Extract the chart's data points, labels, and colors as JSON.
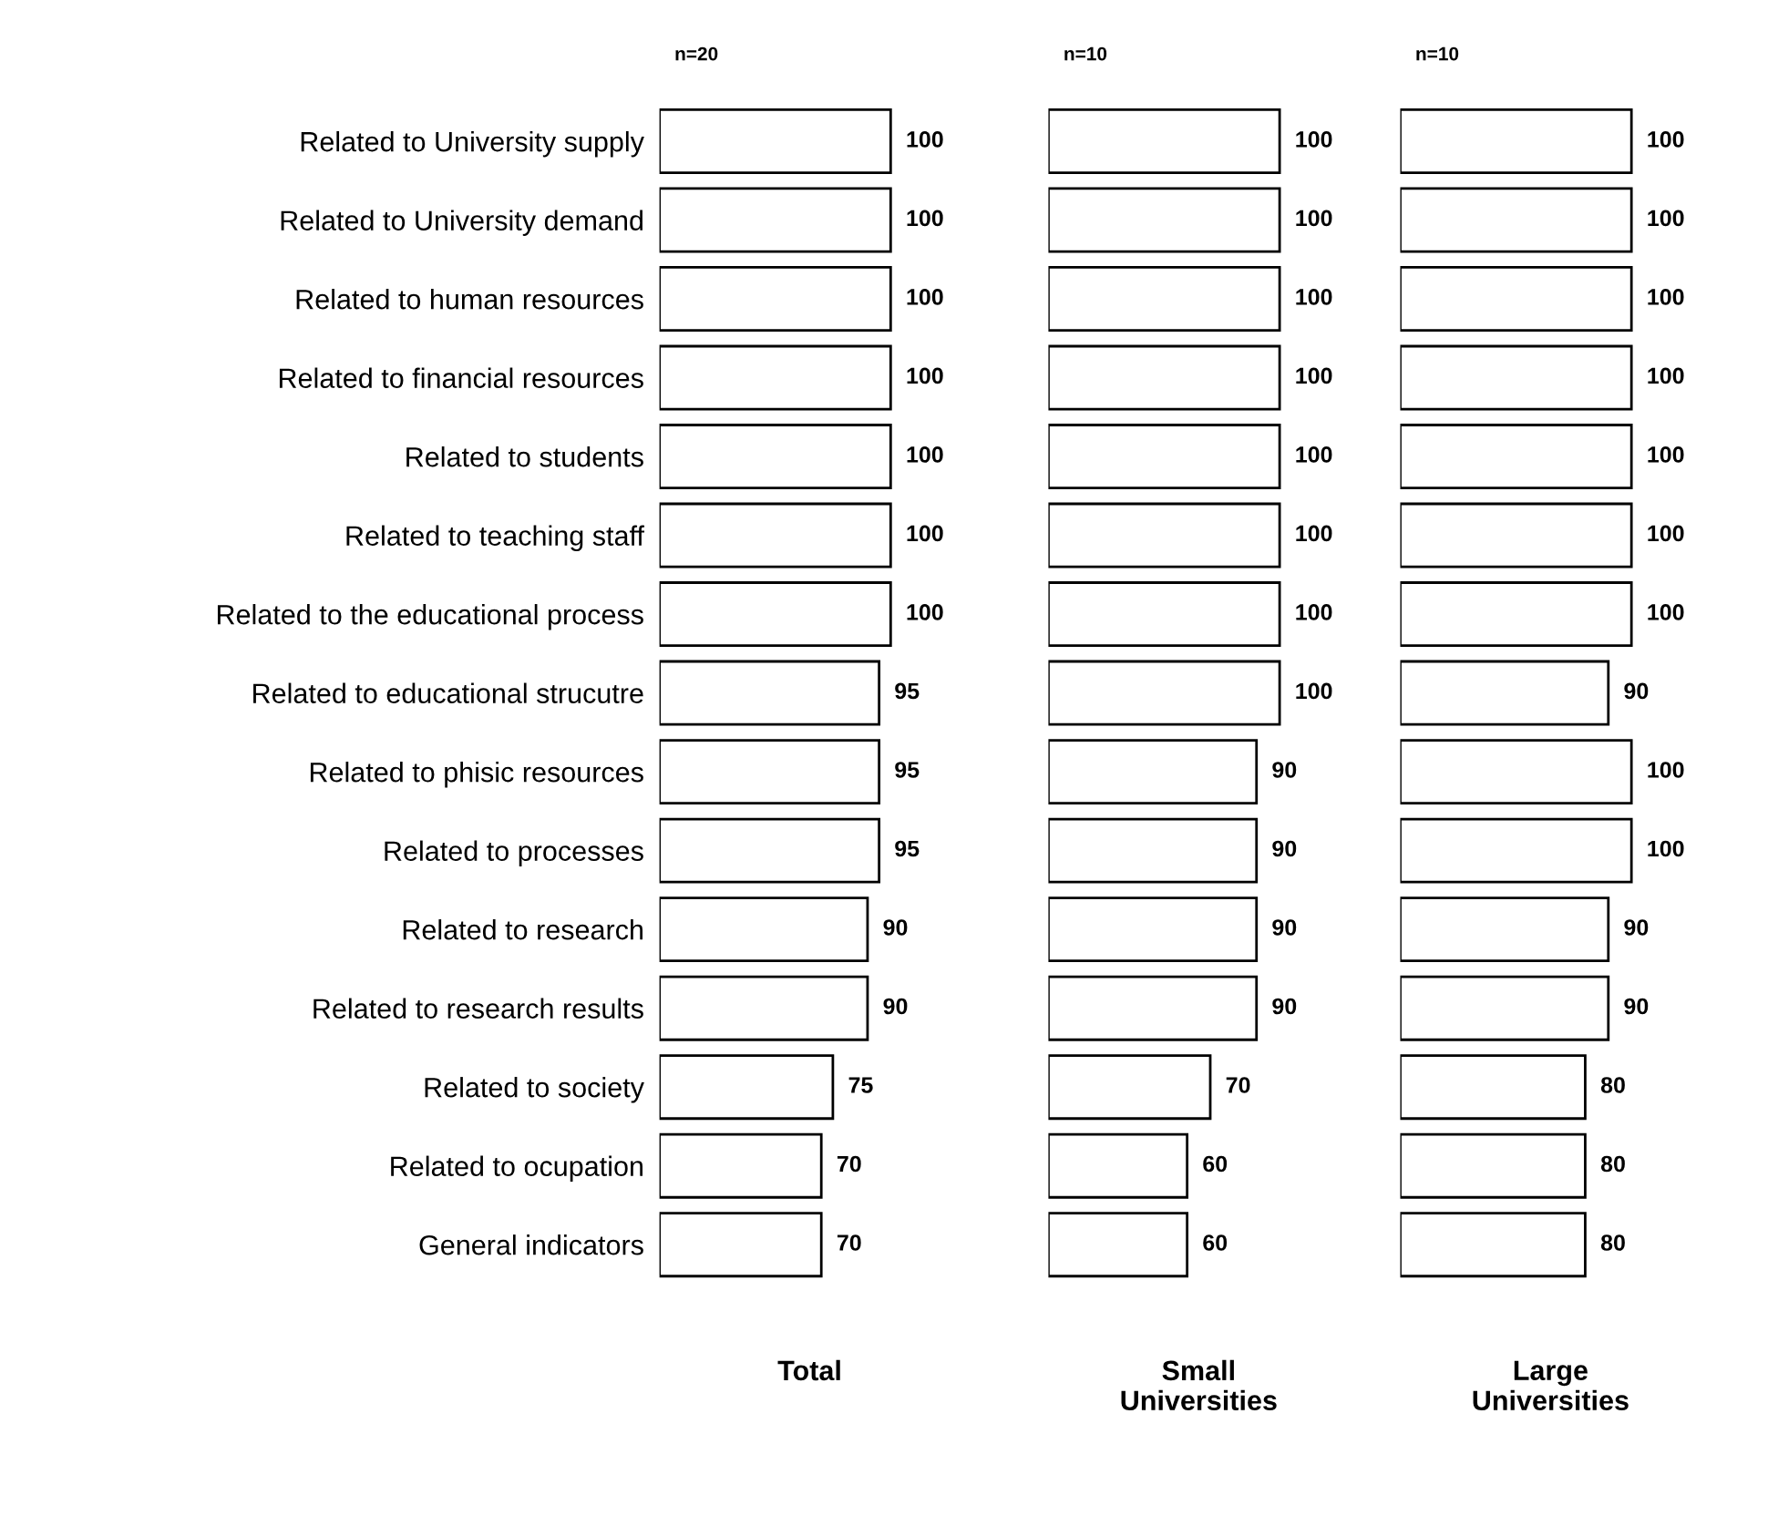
{
  "chart_data": [
    {
      "type": "bar",
      "orientation": "horizontal",
      "subtitle": "n=20",
      "xlabel": "Total",
      "data_labels": true,
      "color": "#ffffff",
      "categories": [
        "Related to University supply",
        "Related to University demand",
        "Related to human resources",
        "Related to financial resources",
        "Related to students",
        "Related to teaching staff",
        "Related to the educational process",
        "Related to educational strucutre",
        "Related to phisic resources",
        "Related to processes",
        "Related to research",
        "Related to research results",
        "Related to society",
        "Related to ocupation",
        "General indicators"
      ],
      "values": [
        100,
        100,
        100,
        100,
        100,
        100,
        100,
        95,
        95,
        95,
        90,
        90,
        75,
        70,
        70
      ]
    },
    {
      "type": "bar",
      "orientation": "horizontal",
      "subtitle": "n=10",
      "xlabel": "Small\nUniversities",
      "data_labels": true,
      "color": "#ffffff",
      "categories": [
        null,
        null,
        null,
        null,
        null,
        null,
        null,
        null,
        null,
        null,
        null,
        null,
        null,
        null,
        null
      ],
      "values": [
        100,
        100,
        100,
        100,
        100,
        100,
        100,
        100,
        90,
        90,
        90,
        90,
        70,
        60,
        60
      ]
    },
    {
      "type": "bar",
      "orientation": "horizontal",
      "subtitle": "n=10",
      "xlabel": "Large\nUniversities",
      "data_labels": true,
      "color": "#ffffff",
      "categories": [
        null,
        null,
        null,
        null,
        null,
        null,
        null,
        null,
        null,
        null,
        null,
        null,
        null,
        null,
        null
      ],
      "values": [
        100,
        100,
        100,
        100,
        100,
        100,
        100,
        90,
        100,
        100,
        90,
        90,
        80,
        80,
        80
      ]
    }
  ]
}
